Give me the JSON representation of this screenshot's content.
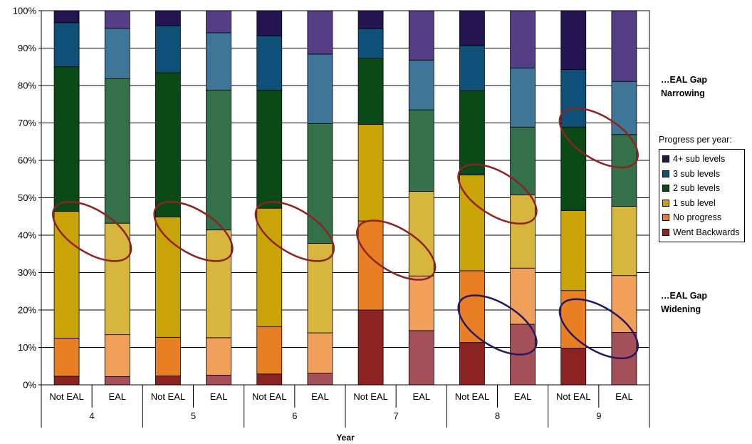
{
  "chart_data": {
    "type": "bar",
    "stacked": true,
    "percent": true,
    "xlabel": "Year",
    "ylabel": "",
    "ylim": [
      0,
      100
    ],
    "yticks": [
      "0%",
      "10%",
      "20%",
      "30%",
      "40%",
      "50%",
      "60%",
      "70%",
      "80%",
      "90%",
      "100%"
    ],
    "grid": true,
    "groups": [
      "4",
      "5",
      "6",
      "7",
      "8",
      "9"
    ],
    "categories": [
      "Not EAL",
      "EAL",
      "Not EAL",
      "EAL",
      "Not EAL",
      "EAL",
      "Not EAL",
      "EAL",
      "Not EAL",
      "EAL",
      "Not EAL",
      "EAL"
    ],
    "legend_title": "Progress per year:",
    "legend_position": "right",
    "series": [
      {
        "name": "Went Backwards",
        "colors": [
          "#8B2323",
          "#A45058"
        ],
        "values": [
          2.3,
          2.2,
          2.4,
          2.6,
          2.9,
          3.1,
          20.0,
          14.5,
          11.3,
          16.2,
          9.8,
          14.0
        ]
      },
      {
        "name": "No progress",
        "colors": [
          "#E97F25",
          "#F0A05A"
        ],
        "values": [
          10.2,
          11.2,
          10.3,
          10.0,
          12.6,
          10.8,
          23.8,
          14.6,
          19.2,
          15.0,
          15.4,
          15.2
        ]
      },
      {
        "name": "1 sub level",
        "colors": [
          "#C9A408",
          "#D6B63E"
        ],
        "values": [
          33.9,
          29.8,
          32.2,
          28.8,
          31.7,
          23.9,
          25.8,
          22.6,
          25.6,
          19.6,
          21.4,
          18.5
        ]
      },
      {
        "name": "2 sub levels",
        "colors": [
          "#0A4A16",
          "#347049"
        ],
        "values": [
          38.6,
          38.6,
          38.5,
          37.4,
          31.5,
          32.0,
          17.6,
          21.8,
          22.5,
          18.1,
          22.3,
          19.2
        ]
      },
      {
        "name": "3 sub levels",
        "colors": [
          "#0F5078",
          "#3F7597"
        ],
        "values": [
          11.8,
          13.5,
          12.6,
          15.3,
          14.6,
          18.6,
          8.0,
          13.3,
          12.1,
          15.8,
          15.4,
          14.2
        ]
      },
      {
        "name": "4+ sub levels",
        "colors": [
          "#241451",
          "#563E86"
        ],
        "values": [
          3.2,
          4.7,
          4.0,
          5.9,
          6.7,
          11.6,
          4.8,
          13.2,
          9.3,
          15.3,
          15.7,
          18.9
        ]
      }
    ],
    "annotations": [
      {
        "text": "…EAL Gap Narrowing",
        "lines": [
          "…EAL Gap",
          "Narrowing"
        ],
        "color": "#8B2323"
      },
      {
        "text": "…EAL Gap Widening",
        "lines": [
          "…EAL Gap",
          "Widening"
        ],
        "color": "#2A1660"
      }
    ]
  }
}
